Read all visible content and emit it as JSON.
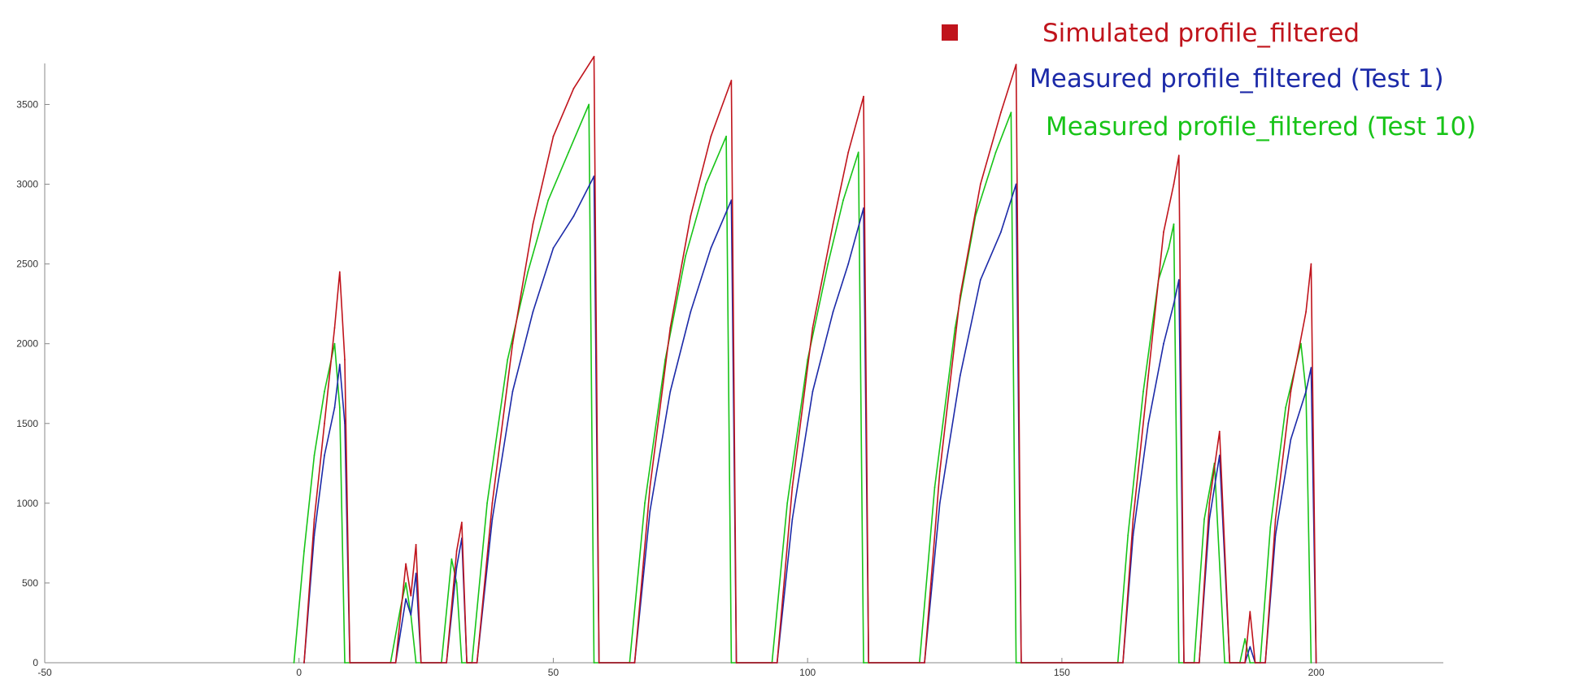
{
  "chart_data": {
    "type": "line",
    "title": "",
    "xlabel": "",
    "ylabel": "",
    "xlim": [
      -50,
      225
    ],
    "ylim": [
      0,
      3900
    ],
    "x_ticks": [
      -50,
      0,
      50,
      100,
      150,
      200
    ],
    "y_ticks": [
      0,
      500,
      1000,
      1500,
      2000,
      2500,
      3000,
      3500
    ],
    "grid": false,
    "legend_position": "top-right",
    "series": [
      {
        "name": "Simulated profile_filtered",
        "color": "#c0141c",
        "segments": [
          [
            [
              1,
              0
            ],
            [
              3,
              900
            ],
            [
              5,
              1500
            ],
            [
              7,
              2100
            ],
            [
              8,
              2450
            ],
            [
              9,
              1900
            ],
            [
              10,
              0
            ]
          ],
          [
            [
              19,
              0
            ],
            [
              21,
              620
            ],
            [
              22,
              420
            ],
            [
              23,
              740
            ],
            [
              24,
              0
            ]
          ],
          [
            [
              29,
              0
            ],
            [
              31,
              700
            ],
            [
              32,
              880
            ],
            [
              33,
              0
            ]
          ],
          [
            [
              35,
              0
            ],
            [
              38,
              1000
            ],
            [
              42,
              2000
            ],
            [
              46,
              2750
            ],
            [
              50,
              3300
            ],
            [
              54,
              3600
            ],
            [
              58,
              3800
            ],
            [
              59,
              0
            ]
          ],
          [
            [
              66,
              0
            ],
            [
              69,
              1100
            ],
            [
              73,
              2100
            ],
            [
              77,
              2800
            ],
            [
              81,
              3300
            ],
            [
              85,
              3650
            ],
            [
              86,
              0
            ]
          ],
          [
            [
              94,
              0
            ],
            [
              97,
              1100
            ],
            [
              101,
              2100
            ],
            [
              105,
              2750
            ],
            [
              108,
              3200
            ],
            [
              111,
              3550
            ],
            [
              112,
              0
            ]
          ],
          [
            [
              123,
              0
            ],
            [
              126,
              1200
            ],
            [
              130,
              2300
            ],
            [
              134,
              3000
            ],
            [
              138,
              3450
            ],
            [
              141,
              3750
            ],
            [
              142,
              0
            ]
          ],
          [
            [
              162,
              0
            ],
            [
              164,
              900
            ],
            [
              167,
              1800
            ],
            [
              170,
              2700
            ],
            [
              172,
              3000
            ],
            [
              173,
              3180
            ],
            [
              174,
              0
            ]
          ],
          [
            [
              177,
              0
            ],
            [
              179,
              1000
            ],
            [
              181,
              1450
            ],
            [
              183,
              0
            ]
          ],
          [
            [
              186,
              0
            ],
            [
              187,
              320
            ],
            [
              188,
              0
            ]
          ],
          [
            [
              190,
              0
            ],
            [
              192,
              900
            ],
            [
              195,
              1700
            ],
            [
              198,
              2200
            ],
            [
              199,
              2500
            ],
            [
              200,
              0
            ]
          ]
        ]
      },
      {
        "name": "Measured profile_filtered (Test 1)",
        "color": "#1c2aa8",
        "segments": [
          [
            [
              1,
              0
            ],
            [
              3,
              800
            ],
            [
              5,
              1300
            ],
            [
              7,
              1600
            ],
            [
              8,
              1870
            ],
            [
              9,
              1500
            ],
            [
              10,
              0
            ]
          ],
          [
            [
              19,
              0
            ],
            [
              21,
              400
            ],
            [
              22,
              300
            ],
            [
              23,
              560
            ],
            [
              24,
              0
            ]
          ],
          [
            [
              29,
              0
            ],
            [
              31,
              600
            ],
            [
              32,
              780
            ],
            [
              33,
              0
            ]
          ],
          [
            [
              35,
              0
            ],
            [
              38,
              900
            ],
            [
              42,
              1700
            ],
            [
              46,
              2200
            ],
            [
              50,
              2600
            ],
            [
              54,
              2800
            ],
            [
              58,
              3050
            ],
            [
              59,
              0
            ]
          ],
          [
            [
              66,
              0
            ],
            [
              69,
              950
            ],
            [
              73,
              1700
            ],
            [
              77,
              2200
            ],
            [
              81,
              2600
            ],
            [
              85,
              2900
            ],
            [
              86,
              0
            ]
          ],
          [
            [
              94,
              0
            ],
            [
              97,
              900
            ],
            [
              101,
              1700
            ],
            [
              105,
              2200
            ],
            [
              108,
              2500
            ],
            [
              111,
              2850
            ],
            [
              112,
              0
            ]
          ],
          [
            [
              123,
              0
            ],
            [
              126,
              1000
            ],
            [
              130,
              1800
            ],
            [
              134,
              2400
            ],
            [
              138,
              2700
            ],
            [
              141,
              3000
            ],
            [
              142,
              0
            ]
          ],
          [
            [
              162,
              0
            ],
            [
              164,
              800
            ],
            [
              167,
              1500
            ],
            [
              170,
              2000
            ],
            [
              172,
              2250
            ],
            [
              173,
              2400
            ],
            [
              174,
              0
            ]
          ],
          [
            [
              177,
              0
            ],
            [
              179,
              900
            ],
            [
              181,
              1300
            ],
            [
              183,
              0
            ]
          ],
          [
            [
              186,
              0
            ],
            [
              187,
              100
            ],
            [
              188,
              0
            ]
          ],
          [
            [
              190,
              0
            ],
            [
              192,
              800
            ],
            [
              195,
              1400
            ],
            [
              198,
              1700
            ],
            [
              199,
              1850
            ],
            [
              200,
              0
            ]
          ]
        ]
      },
      {
        "name": "Measured profile_filtered (Test 10)",
        "color": "#18c418",
        "segments": [
          [
            [
              -1,
              0
            ],
            [
              1,
              700
            ],
            [
              3,
              1300
            ],
            [
              5,
              1700
            ],
            [
              7,
              2000
            ],
            [
              8,
              1600
            ],
            [
              9,
              0
            ]
          ],
          [
            [
              18,
              0
            ],
            [
              20,
              350
            ],
            [
              21,
              500
            ],
            [
              22,
              300
            ],
            [
              23,
              0
            ]
          ],
          [
            [
              28,
              0
            ],
            [
              30,
              650
            ],
            [
              31,
              500
            ],
            [
              32,
              0
            ]
          ],
          [
            [
              34,
              0
            ],
            [
              37,
              1000
            ],
            [
              41,
              1900
            ],
            [
              45,
              2450
            ],
            [
              49,
              2900
            ],
            [
              53,
              3200
            ],
            [
              57,
              3500
            ],
            [
              58,
              0
            ]
          ],
          [
            [
              65,
              0
            ],
            [
              68,
              1000
            ],
            [
              72,
              1900
            ],
            [
              76,
              2550
            ],
            [
              80,
              3000
            ],
            [
              84,
              3300
            ],
            [
              85,
              0
            ]
          ],
          [
            [
              93,
              0
            ],
            [
              96,
              1000
            ],
            [
              100,
              1900
            ],
            [
              104,
              2500
            ],
            [
              107,
              2900
            ],
            [
              110,
              3200
            ],
            [
              111,
              0
            ]
          ],
          [
            [
              122,
              0
            ],
            [
              125,
              1100
            ],
            [
              129,
              2100
            ],
            [
              133,
              2800
            ],
            [
              137,
              3200
            ],
            [
              140,
              3450
            ],
            [
              141,
              0
            ]
          ],
          [
            [
              161,
              0
            ],
            [
              163,
              800
            ],
            [
              166,
              1700
            ],
            [
              169,
              2400
            ],
            [
              171,
              2600
            ],
            [
              172,
              2750
            ],
            [
              173,
              0
            ]
          ],
          [
            [
              176,
              0
            ],
            [
              178,
              900
            ],
            [
              180,
              1250
            ],
            [
              182,
              0
            ]
          ],
          [
            [
              185,
              0
            ],
            [
              186,
              150
            ],
            [
              187,
              0
            ]
          ],
          [
            [
              189,
              0
            ],
            [
              191,
              850
            ],
            [
              194,
              1600
            ],
            [
              197,
              2000
            ],
            [
              198,
              1700
            ],
            [
              199,
              0
            ]
          ]
        ]
      }
    ]
  }
}
